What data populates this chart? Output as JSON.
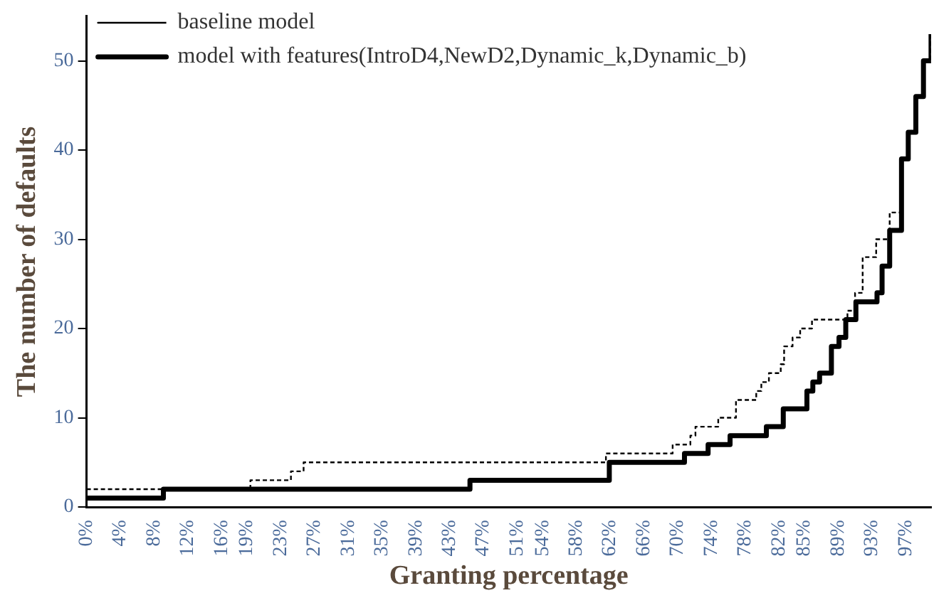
{
  "chart_data": {
    "type": "step",
    "xlabel": "Granting percentage",
    "ylabel": "The number of defaults",
    "legend": "top left",
    "grid": false,
    "marker": "none",
    "xlim": [
      0,
      100
    ],
    "ylim": [
      0,
      55
    ],
    "yticks": [
      0,
      10,
      20,
      30,
      40,
      50
    ],
    "xticks": [
      {
        "value": 0,
        "label": "0%"
      },
      {
        "value": 4,
        "label": "4%"
      },
      {
        "value": 8,
        "label": "8%"
      },
      {
        "value": 12,
        "label": "12%"
      },
      {
        "value": 16,
        "label": "16%"
      },
      {
        "value": 19,
        "label": "19%"
      },
      {
        "value": 23,
        "label": "23%"
      },
      {
        "value": 27,
        "label": "27%"
      },
      {
        "value": 31,
        "label": "31%"
      },
      {
        "value": 35,
        "label": "35%"
      },
      {
        "value": 39,
        "label": "39%"
      },
      {
        "value": 43,
        "label": "43%"
      },
      {
        "value": 47,
        "label": "47%"
      },
      {
        "value": 51,
        "label": "51%"
      },
      {
        "value": 54,
        "label": "54%"
      },
      {
        "value": 58,
        "label": "58%"
      },
      {
        "value": 62,
        "label": "62%"
      },
      {
        "value": 66,
        "label": "66%"
      },
      {
        "value": 70,
        "label": "70%"
      },
      {
        "value": 74,
        "label": "74%"
      },
      {
        "value": 78,
        "label": "78%"
      },
      {
        "value": 82,
        "label": "82%"
      },
      {
        "value": 85,
        "label": "85%"
      },
      {
        "value": 89,
        "label": "89%"
      },
      {
        "value": 93,
        "label": "93%"
      },
      {
        "value": 97,
        "label": "97%"
      }
    ],
    "series": [
      {
        "name": "baseline model",
        "color": "#000000",
        "line_style": "dashed",
        "x": [
          0,
          19.4,
          24.2,
          25.7,
          61.5,
          69.4,
          71.5,
          72.1,
          74.8,
          76.9,
          79.3,
          79.9,
          80.8,
          82.2,
          82.6,
          83.6,
          84.5,
          85.9,
          90.1,
          91,
          91.9,
          93.5,
          95.1,
          96.5,
          97.3,
          98.2,
          99.1,
          100
        ],
        "values": [
          2,
          3,
          4,
          5,
          6,
          7,
          8,
          9,
          10,
          12,
          13,
          14,
          15,
          16,
          18,
          19,
          20,
          21,
          22,
          24,
          28,
          30,
          33,
          39,
          42,
          46,
          50,
          53
        ]
      },
      {
        "name": "model with features(IntroD4,NewD2,Dynamic_k,Dynamic_b)",
        "color": "#000000",
        "line_style": "solid",
        "x": [
          0,
          9.1,
          45.4,
          61.9,
          70.8,
          73.6,
          76.2,
          80.5,
          82.5,
          85.3,
          86,
          86.8,
          88.2,
          89.1,
          89.9,
          91.1,
          93.6,
          94.2,
          95.1,
          96.5,
          97.3,
          98.2,
          99.1,
          100
        ],
        "values": [
          1,
          2,
          3,
          5,
          6,
          7,
          8,
          9,
          11,
          13,
          14,
          15,
          18,
          19,
          21,
          23,
          24,
          27,
          31,
          39,
          42,
          46,
          50,
          53
        ]
      }
    ]
  }
}
